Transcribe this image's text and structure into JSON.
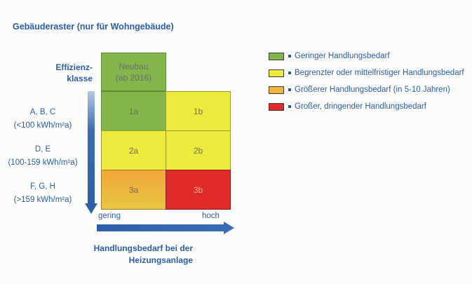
{
  "title": "Gebäuderaster (nur für Wohngebäude)",
  "y_axis_title": [
    "Effizienz-",
    "klasse"
  ],
  "x_axis_title": [
    "Handlungsbedarf bei der",
    "Heizungsanlage"
  ],
  "x_ticks": {
    "low": "gering",
    "high": "hoch"
  },
  "rows": [
    {
      "classes": "A, B, C",
      "range": "(<100 kWh/m²a)"
    },
    {
      "classes": "D, E",
      "range": "(100-159 kWh/m²a)"
    },
    {
      "classes": "F, G, H",
      "range": "(>159 kWh/m²a)"
    }
  ],
  "cells": {
    "neubau": [
      "Neubau",
      "(ab 2016)"
    ],
    "c1a": "1a",
    "c1b": "1b",
    "c2a": "2a",
    "c2b": "2b",
    "c3a": "3a",
    "c3b": "3b"
  },
  "legend": [
    {
      "label": "Geringer Handlungsbedarf",
      "color": "#83b54a"
    },
    {
      "label": "Begrenzter oder mittelfristiger Handlungsbedarf",
      "color": "#ecea3a"
    },
    {
      "label": "Größerer Handlungsbedarf (in 5-10 Jahren)",
      "color": "#f0b43a"
    },
    {
      "label": "Großer, dringender Handlungsbedarf",
      "color": "#e02a2a"
    }
  ],
  "colors": {
    "green": "#83b54a",
    "yellow": "#ecea3a",
    "orange_top": "#f1a539",
    "orange_bottom": "#e9c640",
    "red": "#e02a2a",
    "text_blue": "#2a5ea6",
    "arrow_blue": "#3a6cb3"
  }
}
